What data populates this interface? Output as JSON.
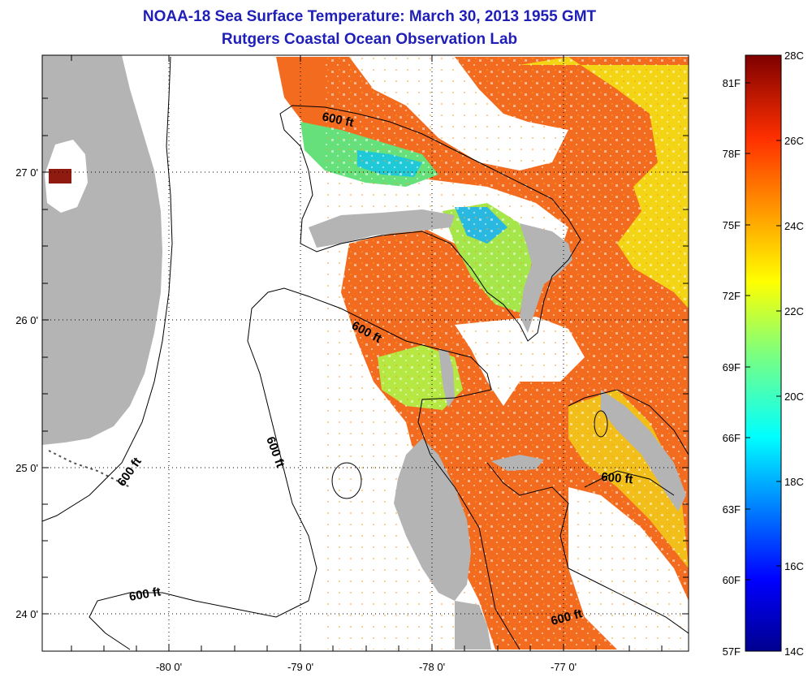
{
  "title": "NOAA-18 Sea Surface Temperature:  March 30, 2013 1955 GMT",
  "subtitle": "Rutgers Coastal Ocean Observation Lab",
  "axes": {
    "x_ticks": [
      "-80 0'",
      "-79 0'",
      "-78 0'",
      "-77 0'"
    ],
    "y_ticks": [
      "27 0'",
      "26 0'",
      "25 0'",
      "24 0'"
    ]
  },
  "contour_labels": [
    "600 ft",
    "600 ft",
    "600 ft",
    "600 ft",
    "600 ft",
    "600 ft"
  ],
  "colorbar": {
    "fahrenheit": [
      "81F",
      "78F",
      "75F",
      "72F",
      "69F",
      "66F",
      "63F",
      "60F",
      "57F"
    ],
    "celsius": [
      "28C",
      "26C",
      "24C",
      "22C",
      "20C",
      "18C",
      "16C",
      "14C"
    ]
  },
  "colors": {
    "title": "#1f1fb8",
    "land": "#b4b4b4",
    "cloud_nodata": "#ffffff",
    "warm": "#f36b1e",
    "cool": "#66e07a"
  }
}
